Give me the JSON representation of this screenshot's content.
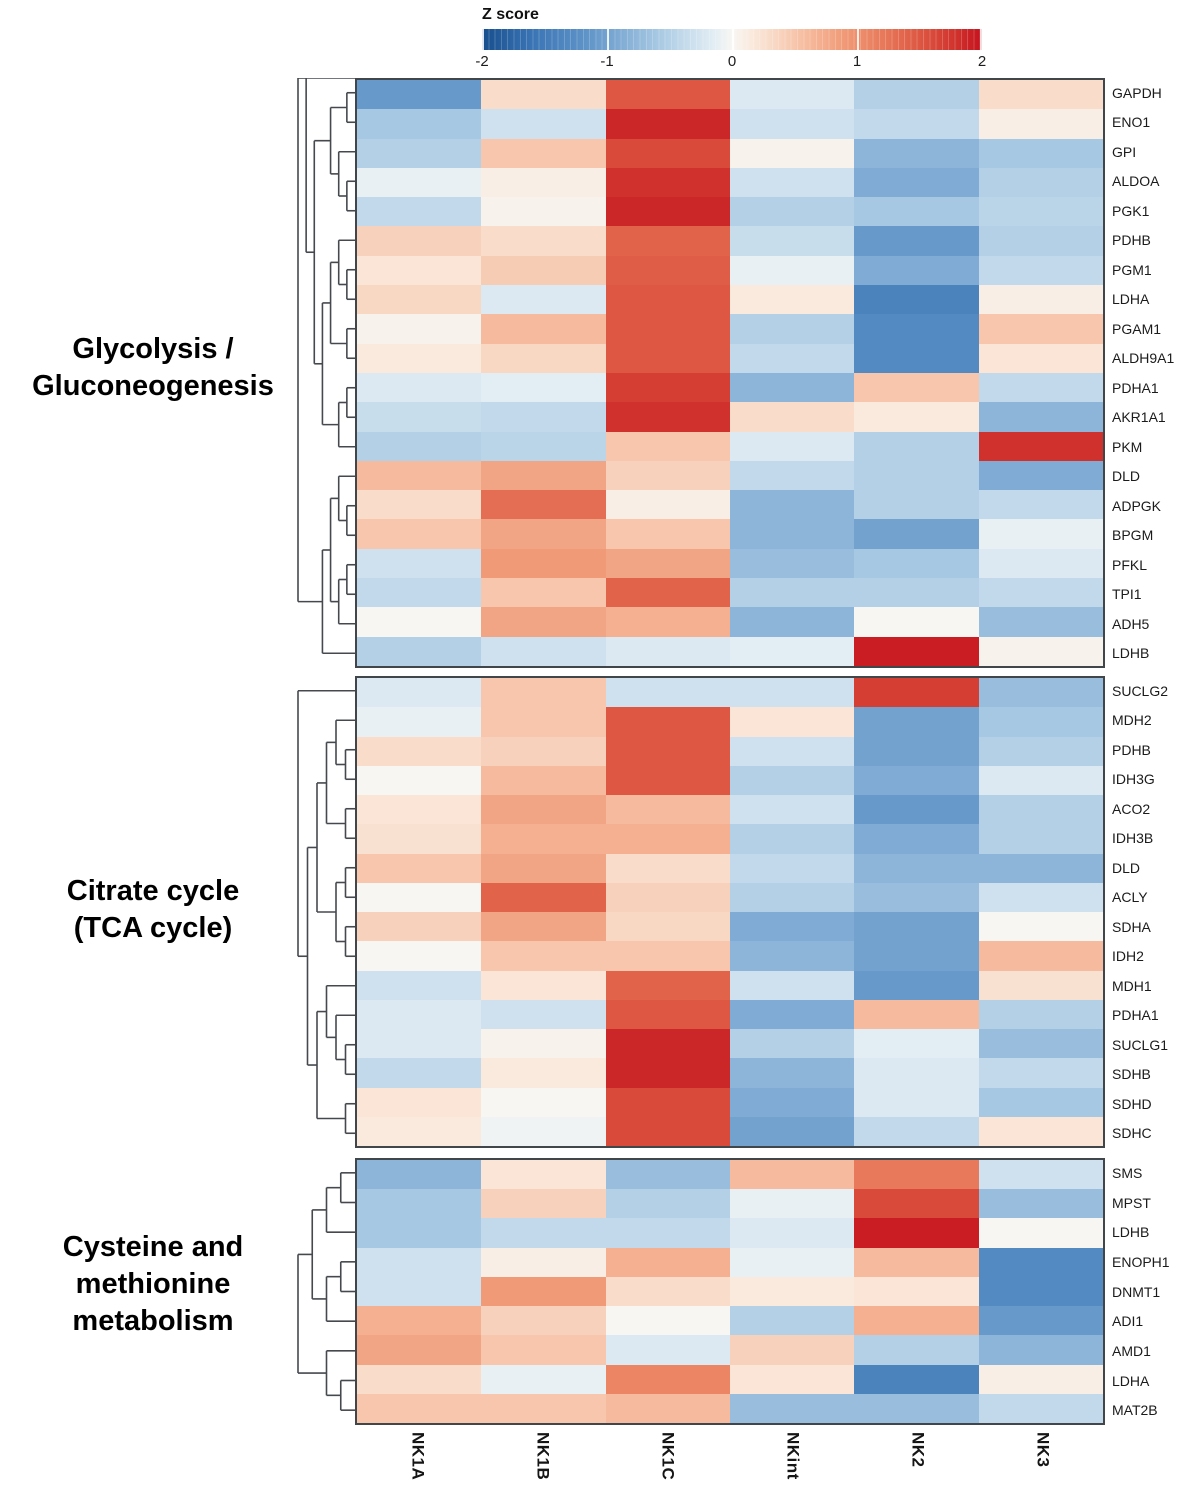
{
  "colorbar": {
    "title": "Z score",
    "ticks": [
      "-2",
      "-1",
      "0",
      "1",
      "2"
    ],
    "min": -2,
    "max": 2
  },
  "columns": [
    "NK1A",
    "NK1B",
    "NK1C",
    "NKint",
    "NK2",
    "NK3"
  ],
  "colors": {
    "panel_border": "#41464b",
    "dendrogram_line": "#45494e",
    "anchors": [
      [
        -2.2,
        "#1b5ba1"
      ],
      [
        -1.6,
        "#3a74b4"
      ],
      [
        -1.2,
        "#5b91c6"
      ],
      [
        -0.9,
        "#7fabd4"
      ],
      [
        -0.6,
        "#a6c8e2"
      ],
      [
        -0.35,
        "#c8ddec"
      ],
      [
        -0.15,
        "#e2edf4"
      ],
      [
        0,
        "#f7f6f3"
      ],
      [
        0.15,
        "#faeade"
      ],
      [
        0.35,
        "#f8d7c3"
      ],
      [
        0.6,
        "#f6bb9e"
      ],
      [
        0.9,
        "#f09a77"
      ],
      [
        1.2,
        "#e87a5b"
      ],
      [
        1.5,
        "#dd5742"
      ],
      [
        1.8,
        "#d0312c"
      ],
      [
        2.1,
        "#c5121f"
      ]
    ]
  },
  "chart_data": [
    {
      "type": "heatmap",
      "title": "Glycolysis / Gluconeogenesis",
      "title_lines": [
        "Glycolysis /",
        "Gluconeogenesis"
      ],
      "legend": "Z score",
      "zlim": [
        -2,
        2
      ],
      "columns": [
        "NK1A",
        "NK1B",
        "NK1C",
        "NKint",
        "NK2",
        "NK3"
      ],
      "rows": [
        "GAPDH",
        "ENO1",
        "GPI",
        "ALDOA",
        "PGK1",
        "PDHB",
        "PGM1",
        "LDHA",
        "PGAM1",
        "ALDH9A1",
        "PDHA1",
        "AKR1A1",
        "PKM",
        "DLD",
        "ADPGK",
        "BPGM",
        "PFKL",
        "TPI1",
        "ADH5",
        "LDHB"
      ],
      "values": [
        [
          -1.1,
          0.3,
          1.5,
          -0.2,
          -0.5,
          0.3
        ],
        [
          -0.6,
          -0.3,
          1.9,
          -0.3,
          -0.4,
          0.1
        ],
        [
          -0.5,
          0.5,
          1.6,
          0.05,
          -0.8,
          -0.6
        ],
        [
          -0.1,
          0.1,
          1.8,
          -0.3,
          -0.9,
          -0.5
        ],
        [
          -0.4,
          0.05,
          1.9,
          -0.5,
          -0.6,
          -0.45
        ],
        [
          0.4,
          0.3,
          1.4,
          -0.35,
          -1.1,
          -0.5
        ],
        [
          0.2,
          0.45,
          1.45,
          -0.1,
          -0.9,
          -0.4
        ],
        [
          0.35,
          -0.2,
          1.5,
          0.15,
          -1.4,
          0.1
        ],
        [
          0.05,
          0.6,
          1.5,
          -0.5,
          -1.3,
          0.5
        ],
        [
          0.15,
          0.35,
          1.5,
          -0.4,
          -1.3,
          0.2
        ],
        [
          -0.2,
          -0.15,
          1.7,
          -0.8,
          0.5,
          -0.4
        ],
        [
          -0.35,
          -0.4,
          1.8,
          0.3,
          0.15,
          -0.8
        ],
        [
          -0.5,
          -0.45,
          0.5,
          -0.2,
          -0.5,
          1.8
        ],
        [
          0.6,
          0.8,
          0.4,
          -0.4,
          -0.5,
          -0.9
        ],
        [
          0.3,
          1.3,
          0.1,
          -0.8,
          -0.5,
          -0.4
        ],
        [
          0.5,
          0.8,
          0.5,
          -0.8,
          -1.0,
          -0.1
        ],
        [
          -0.3,
          0.9,
          0.8,
          -0.7,
          -0.6,
          -0.2
        ],
        [
          -0.4,
          0.5,
          1.4,
          -0.5,
          -0.5,
          -0.4
        ],
        [
          0.0,
          0.8,
          0.7,
          -0.8,
          0.0,
          -0.7
        ],
        [
          -0.5,
          -0.3,
          -0.2,
          -0.15,
          2.0,
          0.05
        ]
      ],
      "dendrogram": [
        [
          [
            [
              [
                0,
                1
              ],
              [
                2,
                [
                  3,
                  4
                ]
              ]
            ],
            [
              [
                [
                  5,
                  [
                    6,
                    7
                  ]
                ],
                [
                  8,
                  9
                ]
              ],
              [
                [
                  10,
                  11
                ],
                12
              ]
            ]
          ]
        ],
        [
          [
            [
              13,
              [
                14,
                15
              ]
            ],
            [
              [
                16,
                17
              ],
              18
            ]
          ],
          19
        ]
      ]
    },
    {
      "type": "heatmap",
      "title": "Citrate cycle (TCA cycle)",
      "title_lines": [
        "Citrate cycle",
        "(TCA cycle)"
      ],
      "legend": "Z score",
      "zlim": [
        -2,
        2
      ],
      "columns": [
        "NK1A",
        "NK1B",
        "NK1C",
        "NKint",
        "NK2",
        "NK3"
      ],
      "rows": [
        "SUCLG2",
        "MDH2",
        "PDHB",
        "IDH3G",
        "ACO2",
        "IDH3B",
        "DLD",
        "ACLY",
        "SDHA",
        "IDH2",
        "MDH1",
        "PDHA1",
        "SUCLG1",
        "SDHB",
        "SDHD",
        "SDHC"
      ],
      "values": [
        [
          -0.2,
          0.5,
          -0.3,
          -0.3,
          1.7,
          -0.7
        ],
        [
          -0.1,
          0.5,
          1.5,
          0.2,
          -1.0,
          -0.6
        ],
        [
          0.3,
          0.4,
          1.5,
          -0.3,
          -1.0,
          -0.5
        ],
        [
          0.0,
          0.6,
          1.5,
          -0.5,
          -0.9,
          -0.2
        ],
        [
          0.2,
          0.8,
          0.6,
          -0.3,
          -1.1,
          -0.5
        ],
        [
          0.25,
          0.7,
          0.7,
          -0.5,
          -0.9,
          -0.5
        ],
        [
          0.5,
          0.8,
          0.3,
          -0.4,
          -0.8,
          -0.8
        ],
        [
          0.0,
          1.4,
          0.4,
          -0.5,
          -0.7,
          -0.3
        ],
        [
          0.4,
          0.8,
          0.35,
          -0.9,
          -1.0,
          0.0
        ],
        [
          0.0,
          0.5,
          0.5,
          -0.8,
          -1.0,
          0.6
        ],
        [
          -0.3,
          0.2,
          1.4,
          -0.3,
          -1.1,
          0.25
        ],
        [
          -0.2,
          -0.3,
          1.5,
          -0.9,
          0.6,
          -0.5
        ],
        [
          -0.2,
          0.05,
          1.9,
          -0.5,
          -0.15,
          -0.7
        ],
        [
          -0.4,
          0.15,
          1.9,
          -0.8,
          -0.2,
          -0.4
        ],
        [
          0.2,
          0.0,
          1.6,
          -0.9,
          -0.2,
          -0.6
        ],
        [
          0.15,
          -0.05,
          1.6,
          -1.0,
          -0.4,
          0.2
        ]
      ],
      "dendrogram": [
        0,
        [
          [
            [
              [
                1,
                [
                  2,
                  3
                ]
              ],
              [
                4,
                5
              ]
            ],
            [
              [
                6,
                7
              ],
              [
                8,
                9
              ]
            ]
          ],
          [
            [
              10,
              [
                11,
                [
                  12,
                  13
                ]
              ]
            ],
            [
              14,
              15
            ]
          ]
        ]
      ]
    },
    {
      "type": "heatmap",
      "title": "Cysteine and methionine metabolism",
      "title_lines": [
        "Cysteine and",
        "methionine",
        "metabolism"
      ],
      "legend": "Z score",
      "zlim": [
        -2,
        2
      ],
      "columns": [
        "NK1A",
        "NK1B",
        "NK1C",
        "NKint",
        "NK2",
        "NK3"
      ],
      "rows": [
        "SMS",
        "MPST",
        "LDHB",
        "ENOPH1",
        "DNMT1",
        "ADI1",
        "AMD1",
        "LDHA",
        "MAT2B"
      ],
      "values": [
        [
          -0.8,
          0.2,
          -0.7,
          0.6,
          1.2,
          -0.3
        ],
        [
          -0.6,
          0.4,
          -0.5,
          -0.1,
          1.6,
          -0.7
        ],
        [
          -0.6,
          -0.4,
          -0.4,
          -0.2,
          2.0,
          0.0
        ],
        [
          -0.3,
          0.1,
          0.7,
          -0.1,
          0.6,
          -1.3
        ],
        [
          -0.3,
          0.9,
          0.3,
          0.15,
          0.2,
          -1.3
        ],
        [
          0.7,
          0.4,
          0.0,
          -0.5,
          0.7,
          -1.1
        ],
        [
          0.8,
          0.5,
          -0.2,
          0.4,
          -0.5,
          -0.8
        ],
        [
          0.3,
          -0.1,
          1.1,
          0.2,
          -1.4,
          0.1
        ],
        [
          0.5,
          0.5,
          0.6,
          -0.7,
          -0.7,
          -0.4
        ]
      ],
      "dendrogram": [
        [
          [
            [
              0,
              1
            ],
            2
          ],
          [
            [
              3,
              4
            ],
            5
          ]
        ],
        [
          6,
          [
            7,
            8
          ]
        ]
      ]
    }
  ]
}
